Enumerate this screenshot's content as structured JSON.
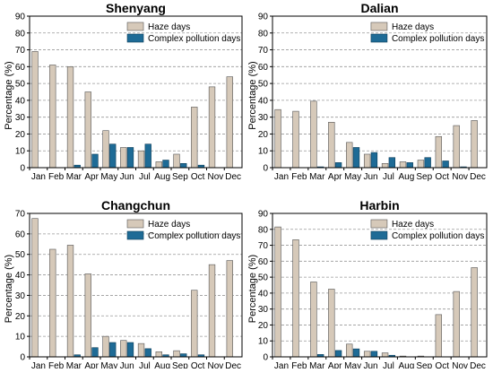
{
  "colors": {
    "haze": "#d6c9b9",
    "complex": "#1e6b96",
    "grid": "#999999",
    "axis": "#000000"
  },
  "common": {
    "months": [
      "Jan",
      "Feb",
      "Mar",
      "Apr",
      "May",
      "Jun",
      "Jul",
      "Aug",
      "Sep",
      "Oct",
      "Nov",
      "Dec"
    ],
    "ylabel": "Percentage (%)",
    "yticks": [
      0,
      10,
      20,
      30,
      40,
      50,
      60,
      70,
      80,
      90
    ],
    "legend": [
      "Haze days",
      "Complex pollution days"
    ]
  },
  "chart_data": [
    {
      "type": "bar",
      "title": "Shenyang",
      "ylabel": "Percentage (%)",
      "ylim": [
        0,
        90
      ],
      "grid": true,
      "legend_position": "top-right",
      "categories": [
        "Jan",
        "Feb",
        "Mar",
        "Apr",
        "May",
        "Jun",
        "Jul",
        "Aug",
        "Sep",
        "Oct",
        "Nov",
        "Dec"
      ],
      "series": [
        {
          "name": "Haze days",
          "values": [
            69,
            61,
            60,
            45,
            22,
            12,
            10,
            3.5,
            8,
            36,
            48,
            54
          ]
        },
        {
          "name": "Complex pollution days",
          "values": [
            0,
            0,
            1.5,
            8,
            14,
            12,
            14,
            4.5,
            2.5,
            1.5,
            0,
            0
          ]
        }
      ]
    },
    {
      "type": "bar",
      "title": "Dalian",
      "ylabel": "Percentage (%)",
      "ylim": [
        0,
        90
      ],
      "grid": true,
      "legend_position": "top-right",
      "categories": [
        "Jan",
        "Feb",
        "Mar",
        "Apr",
        "May",
        "Jun",
        "Jul",
        "Aug",
        "Sep",
        "Oct",
        "Nov",
        "Dec"
      ],
      "series": [
        {
          "name": "Haze days",
          "values": [
            34.5,
            33.5,
            39.5,
            27,
            15,
            8,
            2.5,
            3.5,
            4.5,
            18.5,
            25,
            28
          ]
        },
        {
          "name": "Complex pollution days",
          "values": [
            0,
            0,
            0.5,
            3,
            12,
            9,
            6,
            3,
            6,
            4,
            0.5,
            0
          ]
        }
      ]
    },
    {
      "type": "bar",
      "title": "Changchun",
      "ylabel": "Percentage (%)",
      "ylim": [
        0,
        70
      ],
      "grid": true,
      "legend_position": "top-right",
      "categories": [
        "Jan",
        "Feb",
        "Mar",
        "Apr",
        "May",
        "Jun",
        "Jul",
        "Aug",
        "Sep",
        "Oct",
        "Nov",
        "Dec"
      ],
      "series": [
        {
          "name": "Haze days",
          "values": [
            67.5,
            52.5,
            54.5,
            40.5,
            10,
            8,
            6.5,
            2.5,
            3,
            32.5,
            45,
            47
          ]
        },
        {
          "name": "Complex pollution days",
          "values": [
            0,
            0,
            1,
            4.5,
            7,
            7,
            4,
            1,
            1.5,
            1,
            0,
            0
          ]
        }
      ]
    },
    {
      "type": "bar",
      "title": "Harbin",
      "ylabel": "Percentage (%)",
      "ylim": [
        0,
        90
      ],
      "grid": true,
      "legend_position": "top-right",
      "categories": [
        "Jan",
        "Feb",
        "Mar",
        "Apr",
        "May",
        "Jun",
        "Jul",
        "Aug",
        "Sep",
        "Oct",
        "Nov",
        "Dec"
      ],
      "series": [
        {
          "name": "Haze days",
          "values": [
            81.5,
            73.5,
            47,
            42.5,
            8,
            3.5,
            2.5,
            0.5,
            0.5,
            26.5,
            41,
            56
          ]
        },
        {
          "name": "Complex pollution days",
          "values": [
            0,
            0,
            1.5,
            4,
            5,
            3.5,
            1,
            0,
            0,
            0,
            0,
            0
          ]
        }
      ]
    }
  ]
}
